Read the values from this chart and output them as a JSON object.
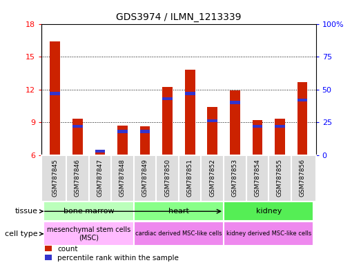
{
  "title": "GDS3974 / ILMN_1213339",
  "samples": [
    "GSM787845",
    "GSM787846",
    "GSM787847",
    "GSM787848",
    "GSM787849",
    "GSM787850",
    "GSM787851",
    "GSM787852",
    "GSM787853",
    "GSM787854",
    "GSM787855",
    "GSM787856"
  ],
  "count_values": [
    16.4,
    9.3,
    6.4,
    8.7,
    8.6,
    12.2,
    13.8,
    10.4,
    11.9,
    9.2,
    9.3,
    12.7
  ],
  "percentile_values": [
    47,
    22,
    3,
    18,
    18,
    43,
    47,
    26,
    40,
    22,
    22,
    42
  ],
  "ymin": 6,
  "ymax": 18,
  "yticks": [
    6,
    9,
    12,
    15,
    18
  ],
  "y2min": 0,
  "y2max": 100,
  "y2ticks": [
    0,
    25,
    50,
    75,
    100
  ],
  "bar_color": "#cc2200",
  "blue_color": "#3333cc",
  "bar_width": 0.45,
  "grid_color": "black",
  "tissue_row_label": "tissue",
  "celltype_row_label": "cell type",
  "legend_count_label": "count",
  "legend_percentile_label": "percentile rank within the sample",
  "tissue_groups": [
    {
      "label": "bone marrow",
      "start": 0,
      "end": 3,
      "color": "#bbffbb"
    },
    {
      "label": "heart",
      "start": 4,
      "end": 7,
      "color": "#88ff88"
    },
    {
      "label": "kidney",
      "start": 8,
      "end": 11,
      "color": "#55ee55"
    }
  ],
  "celltype_groups": [
    {
      "label": "mesenchymal stem cells\n(MSC)",
      "start": 0,
      "end": 3,
      "color": "#ffbbff",
      "fontsize": 7
    },
    {
      "label": "cardiac derived MSC-like cells",
      "start": 4,
      "end": 7,
      "color": "#ee88ee",
      "fontsize": 6
    },
    {
      "label": "kidney derived MSC-like cells",
      "start": 8,
      "end": 11,
      "color": "#ee88ee",
      "fontsize": 6
    }
  ]
}
